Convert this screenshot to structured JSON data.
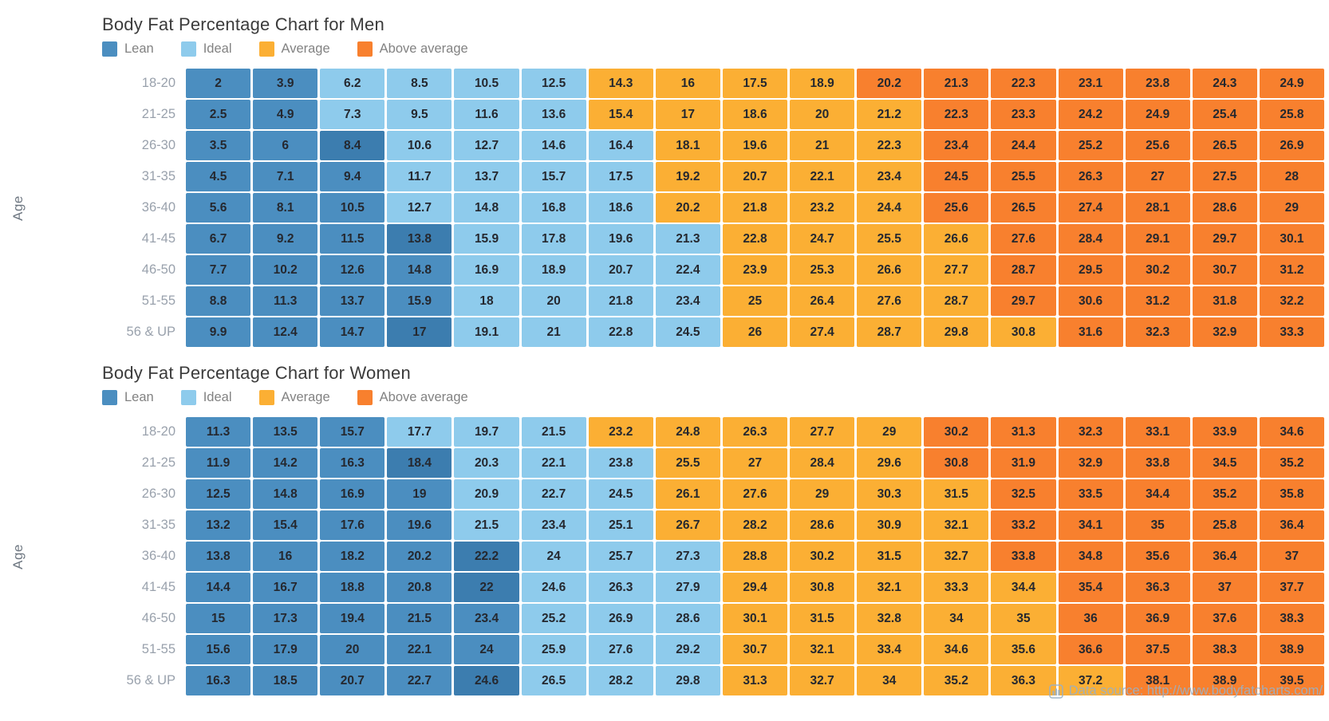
{
  "page": {
    "background": "#ffffff"
  },
  "axis_label": "Age",
  "cat_colors": {
    "L": "#4B8EC0",
    "D": "#3C7DAF",
    "I": "#8ECBEC",
    "A": "#FBAF34",
    "X": "#F8802E"
  },
  "legend": [
    {
      "code": "L",
      "label": "Lean"
    },
    {
      "code": "I",
      "label": "Ideal"
    },
    {
      "code": "A",
      "label": "Average"
    },
    {
      "code": "X",
      "label": "Above average"
    }
  ],
  "footer": {
    "icon": "bar-chart-icon",
    "text": "Data source: http://www.bodyfatcharts.com/"
  },
  "chart_data": [
    {
      "type": "heatmap",
      "title": "Body Fat Percentage Chart for Men",
      "ylabel": "Age",
      "legend_entries": [
        "Lean",
        "Ideal",
        "Average",
        "Above average"
      ],
      "legend_position": "top",
      "columns": 17,
      "category_codes": {
        "L": "Lean",
        "D": "Lean (dark)",
        "I": "Ideal",
        "A": "Average",
        "X": "Above average"
      },
      "rows": [
        {
          "label": "18-20",
          "values": [
            2,
            3.9,
            6.2,
            8.5,
            10.5,
            12.5,
            14.3,
            16,
            17.5,
            18.9,
            20.2,
            21.3,
            22.3,
            23.1,
            23.8,
            24.3,
            24.9
          ],
          "cats": [
            "L",
            "L",
            "I",
            "I",
            "I",
            "I",
            "A",
            "A",
            "A",
            "A",
            "X",
            "X",
            "X",
            "X",
            "X",
            "X",
            "X"
          ]
        },
        {
          "label": "21-25",
          "values": [
            2.5,
            4.9,
            7.3,
            9.5,
            11.6,
            13.6,
            15.4,
            17,
            18.6,
            20,
            21.2,
            22.3,
            23.3,
            24.2,
            24.9,
            25.4,
            25.8
          ],
          "cats": [
            "L",
            "L",
            "I",
            "I",
            "I",
            "I",
            "A",
            "A",
            "A",
            "A",
            "A",
            "X",
            "X",
            "X",
            "X",
            "X",
            "X"
          ]
        },
        {
          "label": "26-30",
          "values": [
            3.5,
            6,
            8.4,
            10.6,
            12.7,
            14.6,
            16.4,
            18.1,
            19.6,
            21,
            22.3,
            23.4,
            24.4,
            25.2,
            25.6,
            26.5,
            26.9
          ],
          "cats": [
            "L",
            "L",
            "D",
            "I",
            "I",
            "I",
            "I",
            "A",
            "A",
            "A",
            "A",
            "X",
            "X",
            "X",
            "X",
            "X",
            "X"
          ]
        },
        {
          "label": "31-35",
          "values": [
            4.5,
            7.1,
            9.4,
            11.7,
            13.7,
            15.7,
            17.5,
            19.2,
            20.7,
            22.1,
            23.4,
            24.5,
            25.5,
            26.3,
            27,
            27.5,
            28
          ],
          "cats": [
            "L",
            "L",
            "L",
            "I",
            "I",
            "I",
            "I",
            "A",
            "A",
            "A",
            "A",
            "X",
            "X",
            "X",
            "X",
            "X",
            "X"
          ]
        },
        {
          "label": "36-40",
          "values": [
            5.6,
            8.1,
            10.5,
            12.7,
            14.8,
            16.8,
            18.6,
            20.2,
            21.8,
            23.2,
            24.4,
            25.6,
            26.5,
            27.4,
            28.1,
            28.6,
            29
          ],
          "cats": [
            "L",
            "L",
            "L",
            "I",
            "I",
            "I",
            "I",
            "A",
            "A",
            "A",
            "A",
            "X",
            "X",
            "X",
            "X",
            "X",
            "X"
          ]
        },
        {
          "label": "41-45",
          "values": [
            6.7,
            9.2,
            11.5,
            13.8,
            15.9,
            17.8,
            19.6,
            21.3,
            22.8,
            24.7,
            25.5,
            26.6,
            27.6,
            28.4,
            29.1,
            29.7,
            30.1
          ],
          "cats": [
            "L",
            "L",
            "L",
            "D",
            "I",
            "I",
            "I",
            "I",
            "A",
            "A",
            "A",
            "A",
            "X",
            "X",
            "X",
            "X",
            "X"
          ]
        },
        {
          "label": "46-50",
          "values": [
            7.7,
            10.2,
            12.6,
            14.8,
            16.9,
            18.9,
            20.7,
            22.4,
            23.9,
            25.3,
            26.6,
            27.7,
            28.7,
            29.5,
            30.2,
            30.7,
            31.2
          ],
          "cats": [
            "L",
            "L",
            "L",
            "L",
            "I",
            "I",
            "I",
            "I",
            "A",
            "A",
            "A",
            "A",
            "X",
            "X",
            "X",
            "X",
            "X"
          ]
        },
        {
          "label": "51-55",
          "values": [
            8.8,
            11.3,
            13.7,
            15.9,
            18,
            20,
            21.8,
            23.4,
            25,
            26.4,
            27.6,
            28.7,
            29.7,
            30.6,
            31.2,
            31.8,
            32.2
          ],
          "cats": [
            "L",
            "L",
            "L",
            "L",
            "I",
            "I",
            "I",
            "I",
            "A",
            "A",
            "A",
            "A",
            "X",
            "X",
            "X",
            "X",
            "X"
          ]
        },
        {
          "label": "56 & UP",
          "values": [
            9.9,
            12.4,
            14.7,
            17,
            19.1,
            21,
            22.8,
            24.5,
            26,
            27.4,
            28.7,
            29.8,
            30.8,
            31.6,
            32.3,
            32.9,
            33.3
          ],
          "cats": [
            "L",
            "L",
            "L",
            "D",
            "I",
            "I",
            "I",
            "I",
            "A",
            "A",
            "A",
            "A",
            "A",
            "X",
            "X",
            "X",
            "X"
          ]
        }
      ]
    },
    {
      "type": "heatmap",
      "title": "Body Fat Percentage Chart for Women",
      "ylabel": "Age",
      "legend_entries": [
        "Lean",
        "Ideal",
        "Average",
        "Above average"
      ],
      "legend_position": "top",
      "columns": 17,
      "category_codes": {
        "L": "Lean",
        "D": "Lean (dark)",
        "I": "Ideal",
        "A": "Average",
        "X": "Above average"
      },
      "rows": [
        {
          "label": "18-20",
          "values": [
            11.3,
            13.5,
            15.7,
            17.7,
            19.7,
            21.5,
            23.2,
            24.8,
            26.3,
            27.7,
            29,
            30.2,
            31.3,
            32.3,
            33.1,
            33.9,
            34.6
          ],
          "cats": [
            "L",
            "L",
            "L",
            "I",
            "I",
            "I",
            "A",
            "A",
            "A",
            "A",
            "A",
            "X",
            "X",
            "X",
            "X",
            "X",
            "X"
          ]
        },
        {
          "label": "21-25",
          "values": [
            11.9,
            14.2,
            16.3,
            18.4,
            20.3,
            22.1,
            23.8,
            25.5,
            27,
            28.4,
            29.6,
            30.8,
            31.9,
            32.9,
            33.8,
            34.5,
            35.2
          ],
          "cats": [
            "L",
            "L",
            "L",
            "D",
            "I",
            "I",
            "I",
            "A",
            "A",
            "A",
            "A",
            "X",
            "X",
            "X",
            "X",
            "X",
            "X"
          ]
        },
        {
          "label": "26-30",
          "values": [
            12.5,
            14.8,
            16.9,
            19,
            20.9,
            22.7,
            24.5,
            26.1,
            27.6,
            29,
            30.3,
            31.5,
            32.5,
            33.5,
            34.4,
            35.2,
            35.8
          ],
          "cats": [
            "L",
            "L",
            "L",
            "L",
            "I",
            "I",
            "I",
            "A",
            "A",
            "A",
            "A",
            "A",
            "X",
            "X",
            "X",
            "X",
            "X"
          ]
        },
        {
          "label": "31-35",
          "values": [
            13.2,
            15.4,
            17.6,
            19.6,
            21.5,
            23.4,
            25.1,
            26.7,
            28.2,
            28.6,
            30.9,
            32.1,
            33.2,
            34.1,
            35,
            25.8,
            36.4
          ],
          "cats": [
            "L",
            "L",
            "L",
            "L",
            "I",
            "I",
            "I",
            "A",
            "A",
            "A",
            "A",
            "A",
            "X",
            "X",
            "X",
            "X",
            "X"
          ]
        },
        {
          "label": "36-40",
          "values": [
            13.8,
            16,
            18.2,
            20.2,
            22.2,
            24,
            25.7,
            27.3,
            28.8,
            30.2,
            31.5,
            32.7,
            33.8,
            34.8,
            35.6,
            36.4,
            37
          ],
          "cats": [
            "L",
            "L",
            "L",
            "L",
            "D",
            "I",
            "I",
            "I",
            "A",
            "A",
            "A",
            "A",
            "X",
            "X",
            "X",
            "X",
            "X"
          ]
        },
        {
          "label": "41-45",
          "values": [
            14.4,
            16.7,
            18.8,
            20.8,
            22,
            24.6,
            26.3,
            27.9,
            29.4,
            30.8,
            32.1,
            33.3,
            34.4,
            35.4,
            36.3,
            37,
            37.7
          ],
          "cats": [
            "L",
            "L",
            "L",
            "L",
            "D",
            "I",
            "I",
            "I",
            "A",
            "A",
            "A",
            "A",
            "A",
            "X",
            "X",
            "X",
            "X"
          ]
        },
        {
          "label": "46-50",
          "values": [
            15,
            17.3,
            19.4,
            21.5,
            23.4,
            25.2,
            26.9,
            28.6,
            30.1,
            31.5,
            32.8,
            34,
            35,
            36,
            36.9,
            37.6,
            38.3
          ],
          "cats": [
            "L",
            "L",
            "L",
            "L",
            "L",
            "I",
            "I",
            "I",
            "A",
            "A",
            "A",
            "A",
            "A",
            "X",
            "X",
            "X",
            "X"
          ]
        },
        {
          "label": "51-55",
          "values": [
            15.6,
            17.9,
            20,
            22.1,
            24,
            25.9,
            27.6,
            29.2,
            30.7,
            32.1,
            33.4,
            34.6,
            35.6,
            36.6,
            37.5,
            38.3,
            38.9
          ],
          "cats": [
            "L",
            "L",
            "L",
            "L",
            "L",
            "I",
            "I",
            "I",
            "A",
            "A",
            "A",
            "A",
            "A",
            "X",
            "X",
            "X",
            "X"
          ]
        },
        {
          "label": "56 & UP",
          "values": [
            16.3,
            18.5,
            20.7,
            22.7,
            24.6,
            26.5,
            28.2,
            29.8,
            31.3,
            32.7,
            34,
            35.2,
            36.3,
            37.2,
            38.1,
            38.9,
            39.5
          ],
          "cats": [
            "L",
            "L",
            "L",
            "L",
            "D",
            "I",
            "I",
            "I",
            "A",
            "A",
            "A",
            "A",
            "A",
            "A",
            "X",
            "X",
            "X"
          ]
        }
      ]
    }
  ]
}
